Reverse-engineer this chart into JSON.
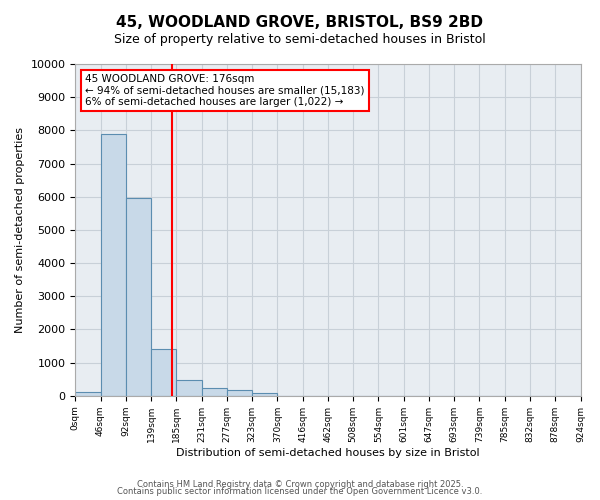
{
  "title": "45, WOODLAND GROVE, BRISTOL, BS9 2BD",
  "subtitle": "Size of property relative to semi-detached houses in Bristol",
  "xlabel": "Distribution of semi-detached houses by size in Bristol",
  "ylabel": "Number of semi-detached properties",
  "annotation_title": "45 WOODLAND GROVE: 176sqm",
  "annotation_line1": "← 94% of semi-detached houses are smaller (15,183)",
  "annotation_line2": "6% of semi-detached houses are larger (1,022) →",
  "bin_labels": [
    "0sqm",
    "46sqm",
    "92sqm",
    "139sqm",
    "185sqm",
    "231sqm",
    "277sqm",
    "323sqm",
    "370sqm",
    "416sqm",
    "462sqm",
    "508sqm",
    "554sqm",
    "601sqm",
    "647sqm",
    "693sqm",
    "739sqm",
    "785sqm",
    "832sqm",
    "878sqm",
    "924sqm"
  ],
  "bar_heights": [
    130,
    7900,
    5950,
    1400,
    490,
    240,
    170,
    80,
    0,
    0,
    0,
    0,
    0,
    0,
    0,
    0,
    0,
    0,
    0,
    0
  ],
  "bar_color": "#c8d9e8",
  "bar_edge_color": "#5b8db0",
  "grid_color": "#c8d0d8",
  "background_color": "#e8edf2",
  "red_line_x": 3.826,
  "ylim": [
    0,
    10000
  ],
  "yticks": [
    0,
    1000,
    2000,
    3000,
    4000,
    5000,
    6000,
    7000,
    8000,
    9000,
    10000
  ],
  "footer1": "Contains HM Land Registry data © Crown copyright and database right 2025.",
  "footer2": "Contains public sector information licensed under the Open Government Licence v3.0."
}
